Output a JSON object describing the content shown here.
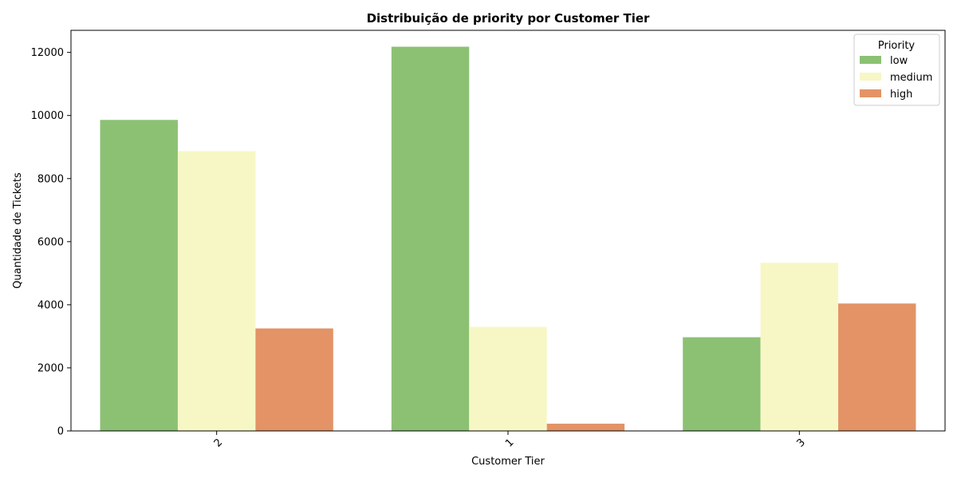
{
  "chart_data": {
    "type": "bar",
    "title": "Distribuição de priority por Customer Tier",
    "xlabel": "Customer Tier",
    "ylabel": "Quantidade de Tickets",
    "categories": [
      "2",
      "1",
      "3"
    ],
    "series": [
      {
        "name": "low",
        "color": "#8cc174",
        "values": [
          9860,
          12180,
          2970
        ]
      },
      {
        "name": "medium",
        "color": "#f7f7c6",
        "values": [
          8870,
          3300,
          5330
        ]
      },
      {
        "name": "high",
        "color": "#e39366",
        "values": [
          3250,
          230,
          4040
        ]
      }
    ],
    "ylim": [
      0,
      12700
    ],
    "yticks": [
      0,
      2000,
      4000,
      6000,
      8000,
      10000,
      12000
    ],
    "ytick_labels": [
      "0",
      "2000",
      "4000",
      "6000",
      "8000",
      "10000",
      "12000"
    ],
    "xtick_rotation": -45,
    "grid": false,
    "legend": {
      "title": "Priority",
      "placement": "top-right"
    }
  }
}
